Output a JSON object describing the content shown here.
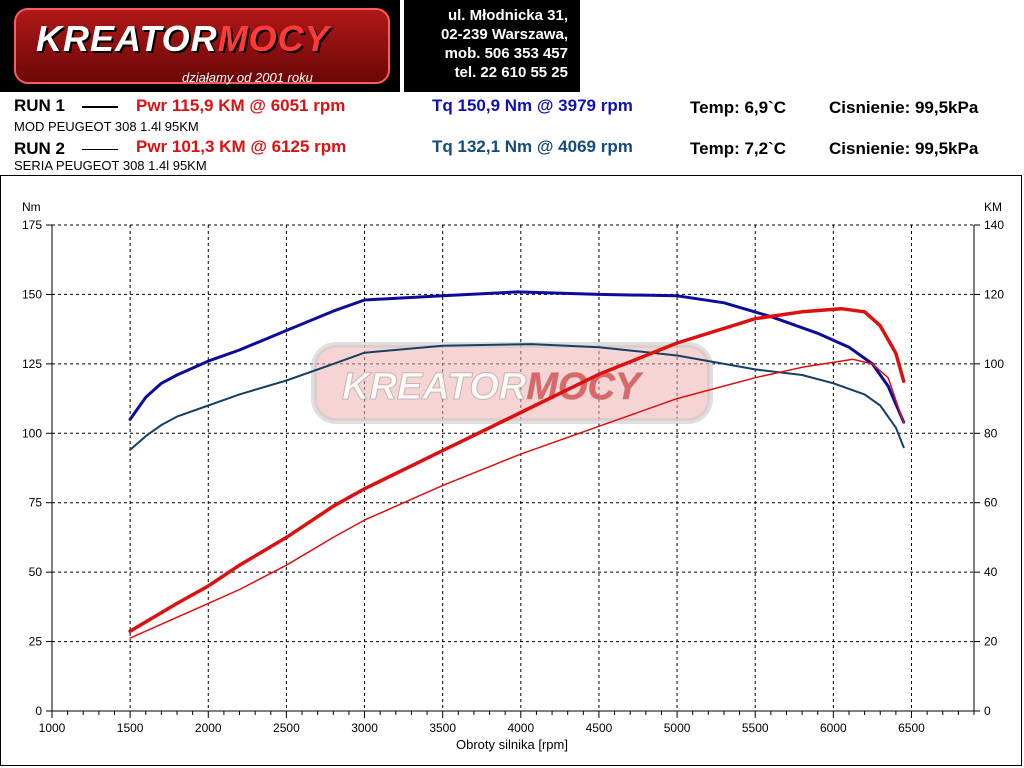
{
  "header": {
    "logo": {
      "brand_part1": "KREATOR",
      "brand_part2": "MOCY",
      "slogan": "działamy od 2001 roku"
    },
    "address": {
      "line1": "ul. Młodnicka 31,",
      "line2": "02-239  Warszawa,",
      "line3": "mob.  506 353 457",
      "line4": "tel.  22 610 55 25"
    }
  },
  "runs": [
    {
      "label": "RUN 1",
      "power": "Pwr  115,9 KM @ 6051 rpm",
      "torque": "Tq 150,9 Nm @ 3979 rpm",
      "temp": "Temp: 6,9`C",
      "pressure": "Cisnienie: 99,5kPa",
      "description": "MOD PEUGEOT 308 1.4l 95KM"
    },
    {
      "label": "RUN 2",
      "power": "Pwr  101,3 KM @ 6125 rpm",
      "torque": "Tq 132,1 Nm @ 4069 rpm",
      "temp": "Temp: 7,2`C",
      "pressure": "Cisnienie: 99,5kPa",
      "description": "SERIA PEUGEOT 308 1.4l 95KM"
    }
  ],
  "colors": {
    "power": "#dd1010",
    "torque_run1": "#0c0c9c",
    "torque_run2": "#163f68"
  },
  "chart_data": {
    "type": "line",
    "xlabel": "Obroty silnika [rpm]",
    "ylabel_left": "Nm",
    "ylabel_right": "KM",
    "xlim": [
      1000,
      6900
    ],
    "ylim_left": [
      0,
      175
    ],
    "ylim_right": [
      0,
      140
    ],
    "x_ticks": [
      1000,
      1500,
      2000,
      2500,
      3000,
      3500,
      4000,
      4500,
      5000,
      5500,
      6000,
      6500
    ],
    "y_ticks_left": [
      0,
      25,
      50,
      75,
      100,
      125,
      150,
      175
    ],
    "y_ticks_right": [
      0,
      20,
      40,
      60,
      80,
      100,
      120,
      140
    ],
    "grid": true,
    "watermark": {
      "part1": "KREATOR",
      "part2": "MOCY"
    },
    "series": [
      {
        "axis": "left",
        "color": "#0c0c9c",
        "width": 3,
        "x": [
          1500,
          1600,
          1700,
          1800,
          2000,
          2200,
          2500,
          2800,
          3000,
          3500,
          3979,
          4500,
          5000,
          5300,
          5600,
          5900,
          6100,
          6250,
          6350,
          6450
        ],
        "y": [
          105,
          113,
          118,
          121,
          126,
          130,
          137,
          144,
          148,
          149.5,
          150.9,
          150,
          149.5,
          147,
          142,
          136,
          131,
          125,
          117,
          104
        ]
      },
      {
        "axis": "left",
        "color": "#163f68",
        "width": 2,
        "x": [
          1500,
          1600,
          1700,
          1800,
          2000,
          2200,
          2500,
          2800,
          3000,
          3500,
          4069,
          4500,
          5000,
          5500,
          5800,
          6000,
          6200,
          6300,
          6400,
          6450
        ],
        "y": [
          94,
          99,
          103,
          106,
          110,
          114,
          119,
          125,
          129,
          131.5,
          132.1,
          131,
          128,
          123,
          121,
          118,
          114,
          110,
          102,
          95
        ]
      },
      {
        "axis": "right",
        "color": "#dd1010",
        "width": 3.5,
        "x": [
          1500,
          1800,
          2000,
          2200,
          2500,
          2800,
          3000,
          3500,
          4000,
          4500,
          5000,
          5500,
          5800,
          6051,
          6200,
          6300,
          6400,
          6450
        ],
        "y": [
          23,
          31,
          36,
          42,
          50,
          59,
          64,
          75,
          86,
          97,
          106,
          113,
          115,
          115.9,
          115,
          111,
          103,
          95
        ]
      },
      {
        "axis": "right",
        "color": "#dd1010",
        "width": 1.5,
        "x": [
          1500,
          1800,
          2000,
          2200,
          2500,
          2800,
          3000,
          3500,
          4000,
          4500,
          5000,
          5500,
          5800,
          6125,
          6250,
          6350,
          6450
        ],
        "y": [
          21,
          27,
          31,
          35,
          42,
          50,
          55,
          65,
          74,
          82,
          90,
          96,
          99,
          101.3,
          100,
          96,
          83
        ]
      }
    ]
  }
}
